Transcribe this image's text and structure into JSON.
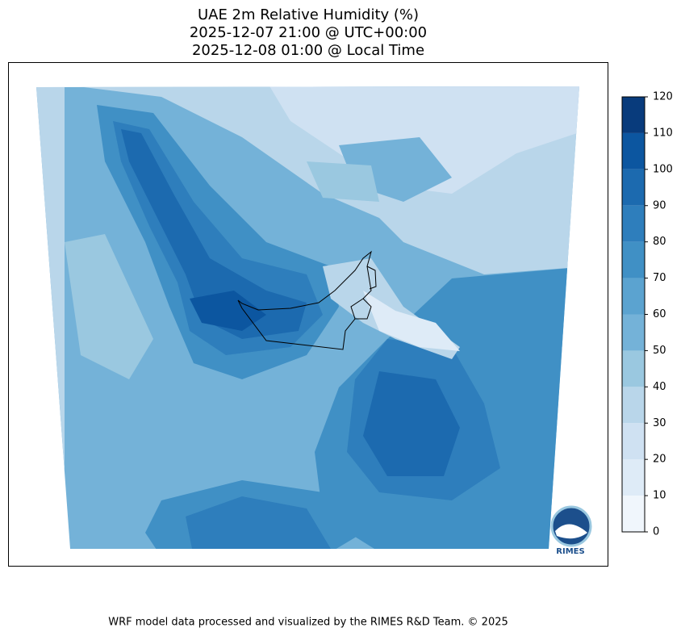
{
  "title": [
    "UAE 2m Relative Humidity (%)",
    "2025-12-07 21:00 @ UTC+00:00",
    "2025-12-08 01:00 @ Local Time"
  ],
  "colorbar": {
    "lim": [
      0,
      120
    ],
    "ticks": [
      0,
      10,
      20,
      30,
      40,
      50,
      60,
      70,
      80,
      90,
      100,
      110,
      120
    ],
    "colors": [
      "#f0f6fc",
      "#deebf7",
      "#cfe1f2",
      "#b9d6ea",
      "#9ac8e0",
      "#74b2d8",
      "#5ba3d0",
      "#4090c5",
      "#2e7ebc",
      "#1c6aaf",
      "#0c56a0",
      "#083b7c"
    ]
  },
  "logo": "RIMES",
  "footer": "WRF model data processed and visualized by the RIMES R&D Team. © 2025"
}
